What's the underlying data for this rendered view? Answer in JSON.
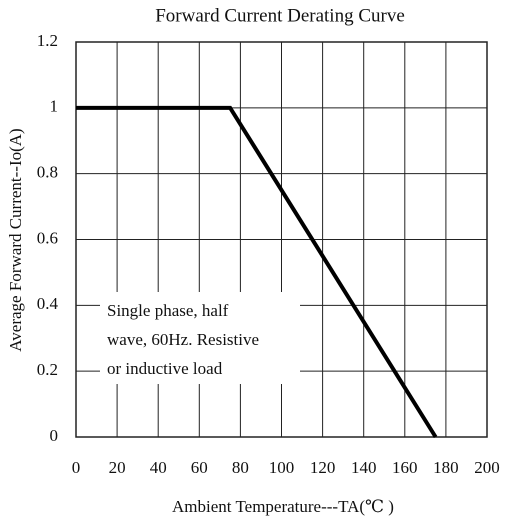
{
  "chart_data": {
    "type": "line",
    "title": "Forward Current Derating Curve",
    "xlabel": "Ambient Temperature---TA(℃ )",
    "ylabel": "Average Forward Current--Io(A)",
    "x": [
      0,
      75,
      175
    ],
    "series": [
      {
        "color": "#000000",
        "values": [
          1,
          1,
          0
        ]
      }
    ],
    "xlim": [
      0,
      200
    ],
    "xticks": [
      0,
      20,
      40,
      60,
      80,
      100,
      120,
      140,
      160,
      180,
      200
    ],
    "ylim": [
      0,
      1.2
    ],
    "yticks": [
      0,
      0.2,
      0.4,
      0.6,
      0.8,
      1,
      1.2
    ],
    "grid": true,
    "annotation": [
      "Single phase, half",
      "wave, 60Hz.  Resistive",
      "or inductive load"
    ]
  }
}
